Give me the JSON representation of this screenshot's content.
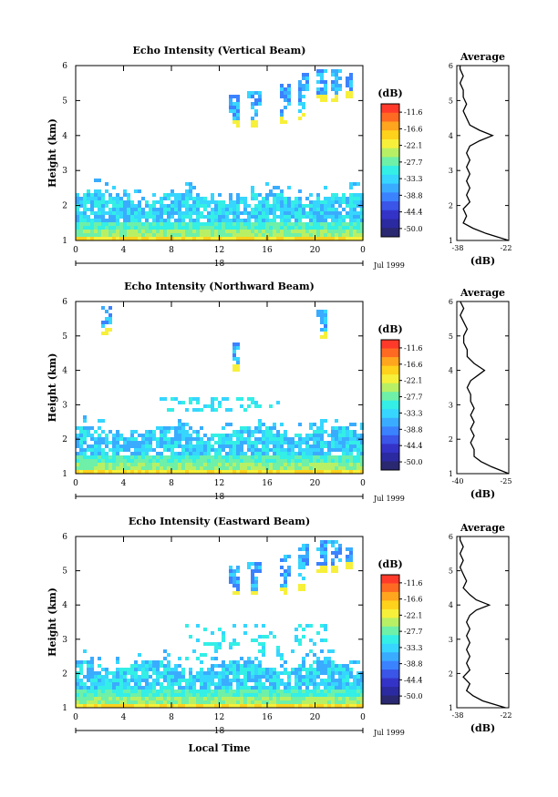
{
  "common": {
    "height_label": "Height (km)",
    "height_ticks": [
      "1",
      "2",
      "3",
      "4",
      "5",
      "6"
    ],
    "time_ticks": [
      "0",
      "4",
      "8",
      "12",
      "16",
      "20",
      "0"
    ],
    "date_marker": "18",
    "month_label": "Jul 1999",
    "xlabel": "Local Time",
    "cb_unit": "(dB)",
    "avg_title": "Average",
    "avg_unit": "(dB)"
  },
  "colorbar": {
    "labels": [
      "-11.6",
      "-16.6",
      "-22.1",
      "-27.7",
      "-33.3",
      "-38.8",
      "-44.4",
      "-50.0"
    ],
    "colors": [
      "#ff3a2a",
      "#ff6a22",
      "#ffa51e",
      "#ffd21c",
      "#f7f03a",
      "#b8f065",
      "#6ef0a8",
      "#33efe6",
      "#36d6ff",
      "#3aacff",
      "#3b82ff",
      "#3a55e8",
      "#3433c8",
      "#2c2aa0",
      "#2a2870"
    ]
  },
  "panels": [
    {
      "title": "Echo Intensity (Vertical Beam)",
      "avg_ticks": [
        "-38",
        "-22"
      ],
      "chart_data": {
        "type": "heatmap",
        "x_range_hours": [
          0,
          24
        ],
        "y_range_km": [
          1,
          6
        ],
        "z_unit": "dB",
        "z_range": [
          -50.0,
          -11.6
        ],
        "profile": {
          "x_range_db": [
            -38,
            -22
          ],
          "height_km": [
            1.0,
            1.2,
            1.35,
            1.5,
            1.7,
            1.9,
            2.1,
            2.3,
            2.5,
            2.7,
            2.9,
            3.1,
            3.3,
            3.5,
            3.7,
            3.85,
            4.0,
            4.15,
            4.3,
            4.5,
            4.7,
            4.9,
            5.1,
            5.3,
            5.5,
            5.7,
            5.9,
            6.0
          ],
          "db": [
            -22,
            -29,
            -33,
            -36,
            -35,
            -36,
            -34,
            -35,
            -34,
            -35,
            -34,
            -35,
            -34,
            -35,
            -34,
            -31,
            -27,
            -31,
            -34,
            -35,
            -36,
            -35,
            -36,
            -36,
            -37,
            -36,
            -37,
            -37
          ]
        }
      }
    },
    {
      "title": "Echo Intensity (Northward Beam)",
      "avg_ticks": [
        "-40",
        "-25"
      ],
      "chart_data": {
        "type": "heatmap",
        "x_range_hours": [
          0,
          24
        ],
        "y_range_km": [
          1,
          6
        ],
        "z_unit": "dB",
        "z_range": [
          -50.0,
          -11.6
        ],
        "profile": {
          "x_range_db": [
            -40,
            -25
          ],
          "height_km": [
            1.0,
            1.2,
            1.35,
            1.5,
            1.7,
            1.9,
            2.1,
            2.3,
            2.5,
            2.7,
            2.9,
            3.1,
            3.3,
            3.5,
            3.7,
            3.85,
            4.0,
            4.2,
            4.4,
            4.6,
            4.8,
            5.0,
            5.2,
            5.4,
            5.6,
            5.8,
            6.0
          ],
          "db": [
            -25,
            -30,
            -33,
            -35,
            -35,
            -36,
            -35,
            -36,
            -35,
            -36,
            -35,
            -36,
            -36,
            -37,
            -36,
            -34,
            -32,
            -35,
            -37,
            -37,
            -38,
            -38,
            -37,
            -38,
            -39,
            -38,
            -39
          ]
        }
      }
    },
    {
      "title": "Echo Intensity (Eastward Beam)",
      "avg_ticks": [
        "-38",
        "-22"
      ],
      "chart_data": {
        "type": "heatmap",
        "x_range_hours": [
          0,
          24
        ],
        "y_range_km": [
          1,
          6
        ],
        "z_unit": "dB",
        "z_range": [
          -50.0,
          -11.6
        ],
        "profile": {
          "x_range_db": [
            -38,
            -22
          ],
          "height_km": [
            1.0,
            1.2,
            1.35,
            1.5,
            1.7,
            1.9,
            2.1,
            2.3,
            2.5,
            2.7,
            2.9,
            3.1,
            3.3,
            3.5,
            3.7,
            3.85,
            4.0,
            4.15,
            4.3,
            4.5,
            4.7,
            4.9,
            5.1,
            5.3,
            5.5,
            5.7,
            5.9,
            6.0
          ],
          "db": [
            -23,
            -30,
            -33,
            -35,
            -34,
            -36,
            -34,
            -35,
            -34,
            -35,
            -34,
            -35,
            -34,
            -35,
            -34,
            -32,
            -28,
            -32,
            -34,
            -36,
            -35,
            -36,
            -37,
            -36,
            -37,
            -36,
            -37,
            -37
          ]
        }
      }
    }
  ]
}
